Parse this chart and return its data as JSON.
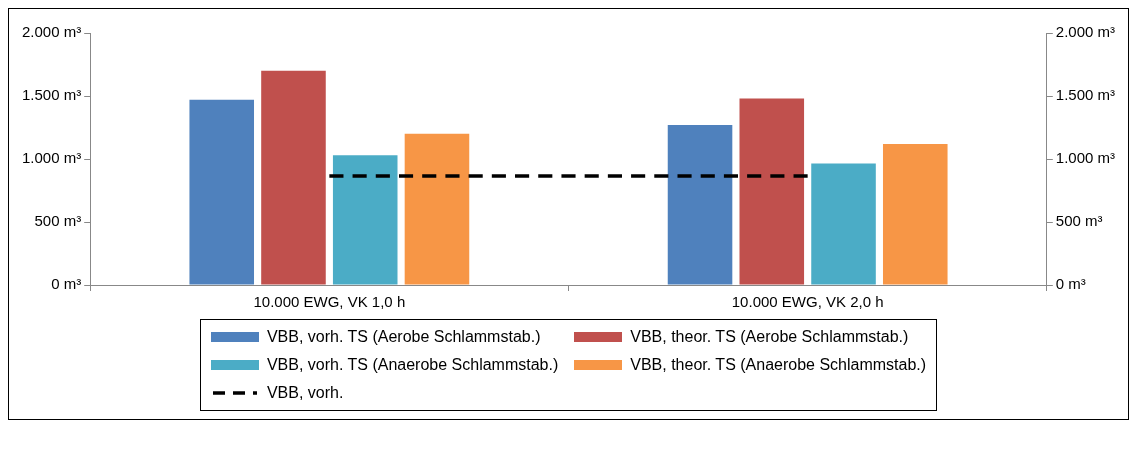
{
  "chart_data": {
    "type": "bar",
    "categories": [
      "10.000 EWG, VK 1,0 h",
      "10.000 EWG, VK 2,0 h"
    ],
    "series": [
      {
        "name": "VBB, vorh. TS (Aerobe Schlammstab.)",
        "color": "#4f81bd",
        "values": [
          1470,
          1270
        ]
      },
      {
        "name": "VBB, theor. TS (Aerobe Schlammstab.)",
        "color": "#c0504d",
        "values": [
          1700,
          1480
        ]
      },
      {
        "name": "VBB, vorh. TS (Anaerobe Schlammstab.)",
        "color": "#4bacc6",
        "values": [
          1030,
          965
        ]
      },
      {
        "name": "VBB, theor. TS (Anaerobe Schlammstab.)",
        "color": "#f79646",
        "values": [
          1200,
          1120
        ]
      },
      {
        "name": "VBB, vorh.",
        "type": "line",
        "color": "#000000",
        "line_style": "dashed",
        "marker": "none",
        "values": [
          865,
          865
        ]
      }
    ],
    "ylim": [
      0,
      2000
    ],
    "yticks": [
      {
        "value": 0,
        "label": "0 m³"
      },
      {
        "value": 500,
        "label": "500 m³"
      },
      {
        "value": 1000,
        "label": "1.000 m³"
      },
      {
        "value": 1500,
        "label": "1.500 m³"
      },
      {
        "value": 2000,
        "label": "2.000 m³"
      }
    ],
    "y2lim": [
      0,
      2000
    ],
    "y2ticks": [
      {
        "value": 0,
        "label": "0 m³"
      },
      {
        "value": 500,
        "label": "500 m³"
      },
      {
        "value": 1000,
        "label": "1.000 m³"
      },
      {
        "value": 1500,
        "label": "1.500 m³"
      },
      {
        "value": 2000,
        "label": "2.000 m³"
      }
    ],
    "grid": false,
    "legend": "bottom"
  }
}
